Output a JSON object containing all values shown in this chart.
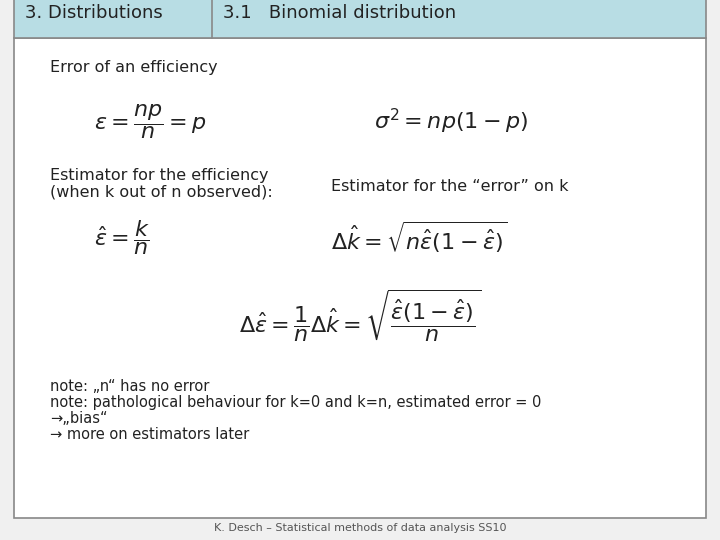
{
  "header_left": "3. Distributions",
  "header_right": "3.1   Binomial distribution",
  "header_bg": "#b8dde4",
  "body_bg": "#ffffff",
  "border_color": "#888888",
  "title_text": "Error of an efficiency",
  "formula1": "$\\varepsilon = \\dfrac{np}{n} = p$",
  "formula2": "$\\sigma^2 = np(1-p)$",
  "label_eff1": "Estimator for the efficiency",
  "label_eff2": "(when k out of n observed):",
  "label_err": "Estimator for the “error” on k",
  "formula3": "$\\hat{\\varepsilon} = \\dfrac{k}{n}$",
  "formula4": "$\\Delta\\hat{k} = \\sqrt{n\\hat{\\varepsilon}(1-\\hat{\\varepsilon})}$",
  "formula5": "$\\Delta\\hat{\\varepsilon} = \\dfrac{1}{n}\\Delta\\hat{k} = \\sqrt{\\dfrac{\\hat{\\varepsilon}(1-\\hat{\\varepsilon})}{n}}$",
  "note1": "note: „n“ has no error",
  "note2": "note: pathological behaviour for k=0 and k=n, estimated error = 0",
  "note3": "→„bias“",
  "note4": "→ more on estimators later",
  "footer": "K. Desch – Statistical methods of data analysis SS10"
}
